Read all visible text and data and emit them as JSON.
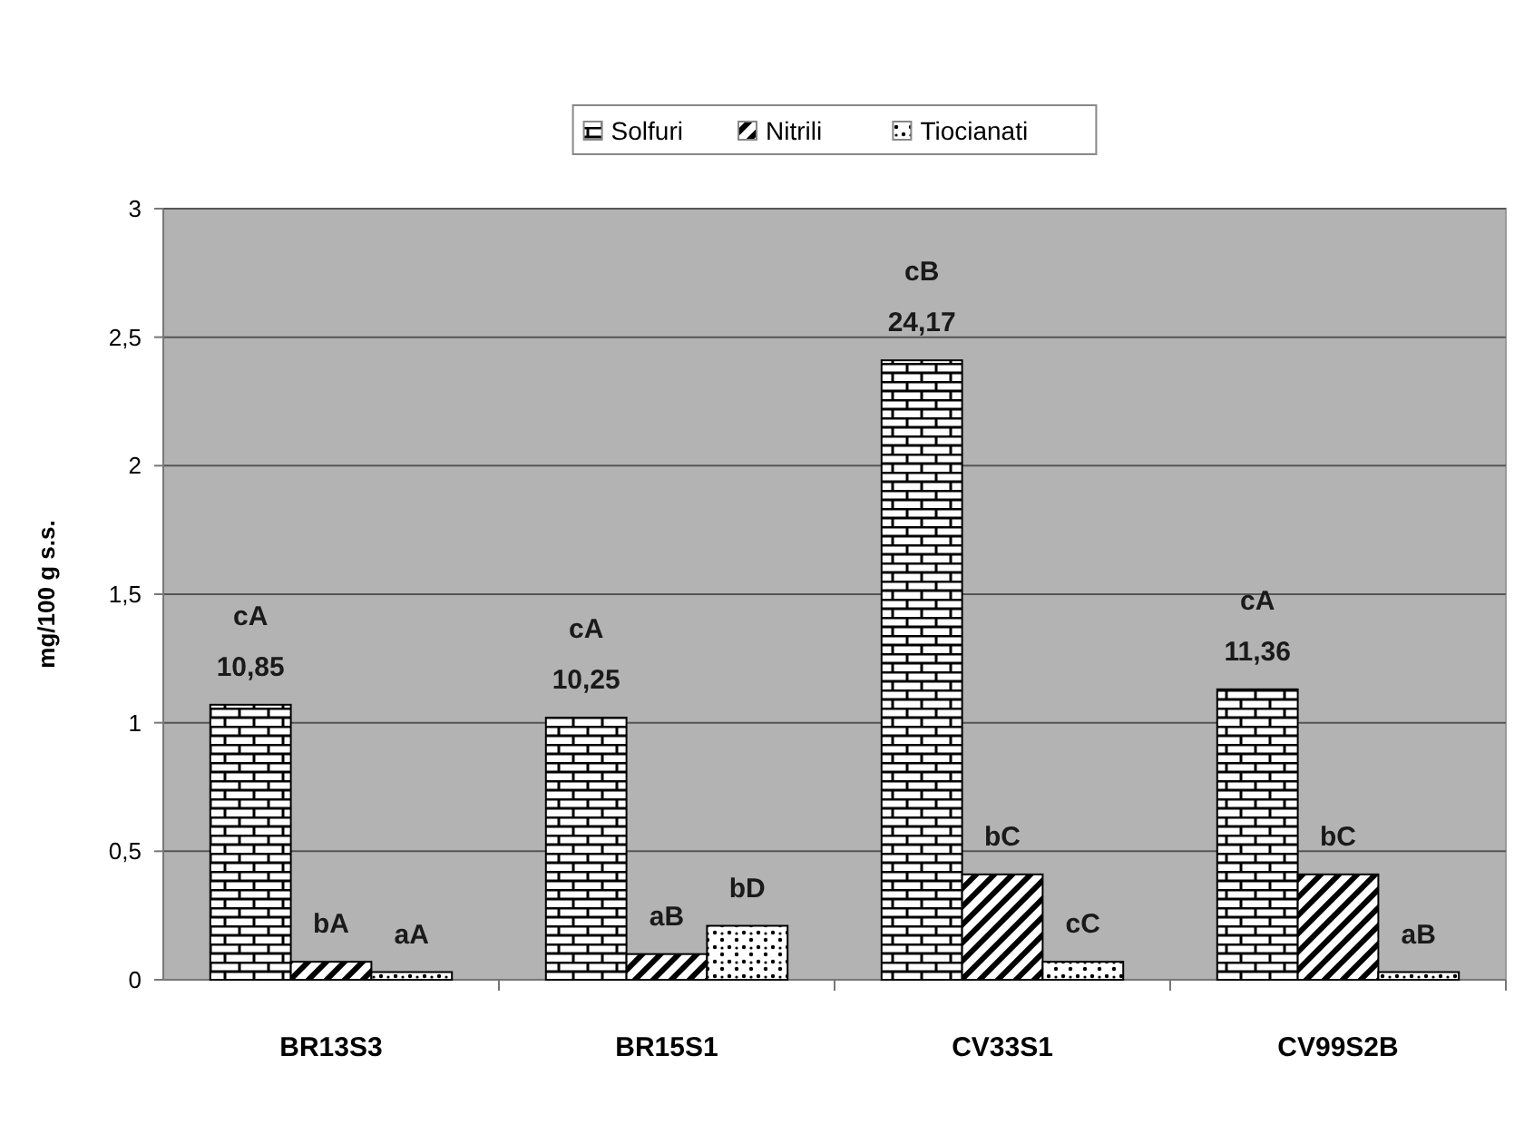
{
  "chart_data": {
    "type": "bar",
    "ylabel": "mg/100 g s.s.",
    "categories": [
      "BR13S3",
      "BR15S1",
      "CV33S1",
      "CV99S2B"
    ],
    "series": [
      {
        "name": "Solfuri",
        "color": "#000000",
        "values": [
          1.07,
          1.02,
          2.41,
          1.13
        ],
        "value_labels": [
          "cA\n10,85",
          "cA\n10,25",
          "cB\n24,17",
          "cA\n11,36"
        ]
      },
      {
        "name": "Nitrili",
        "color": "#000000",
        "values": [
          0.07,
          0.1,
          0.41,
          0.41
        ],
        "value_labels": [
          "bA",
          "aB",
          "bC",
          "bC"
        ]
      },
      {
        "name": "Tiocianati",
        "color": "#000000",
        "values": [
          0.03,
          0.21,
          0.07,
          0.03
        ],
        "value_labels": [
          "aA",
          "bD",
          "cC",
          "aB"
        ]
      }
    ],
    "ylim": [
      0,
      3
    ],
    "yticks": [
      0,
      {
        "value": 0.5,
        "label": "0,5"
      },
      1,
      {
        "value": 1.5,
        "label": "1,5"
      },
      2,
      {
        "value": 2.5,
        "label": "2,5"
      },
      3
    ],
    "grid": "y",
    "legend": "top"
  }
}
